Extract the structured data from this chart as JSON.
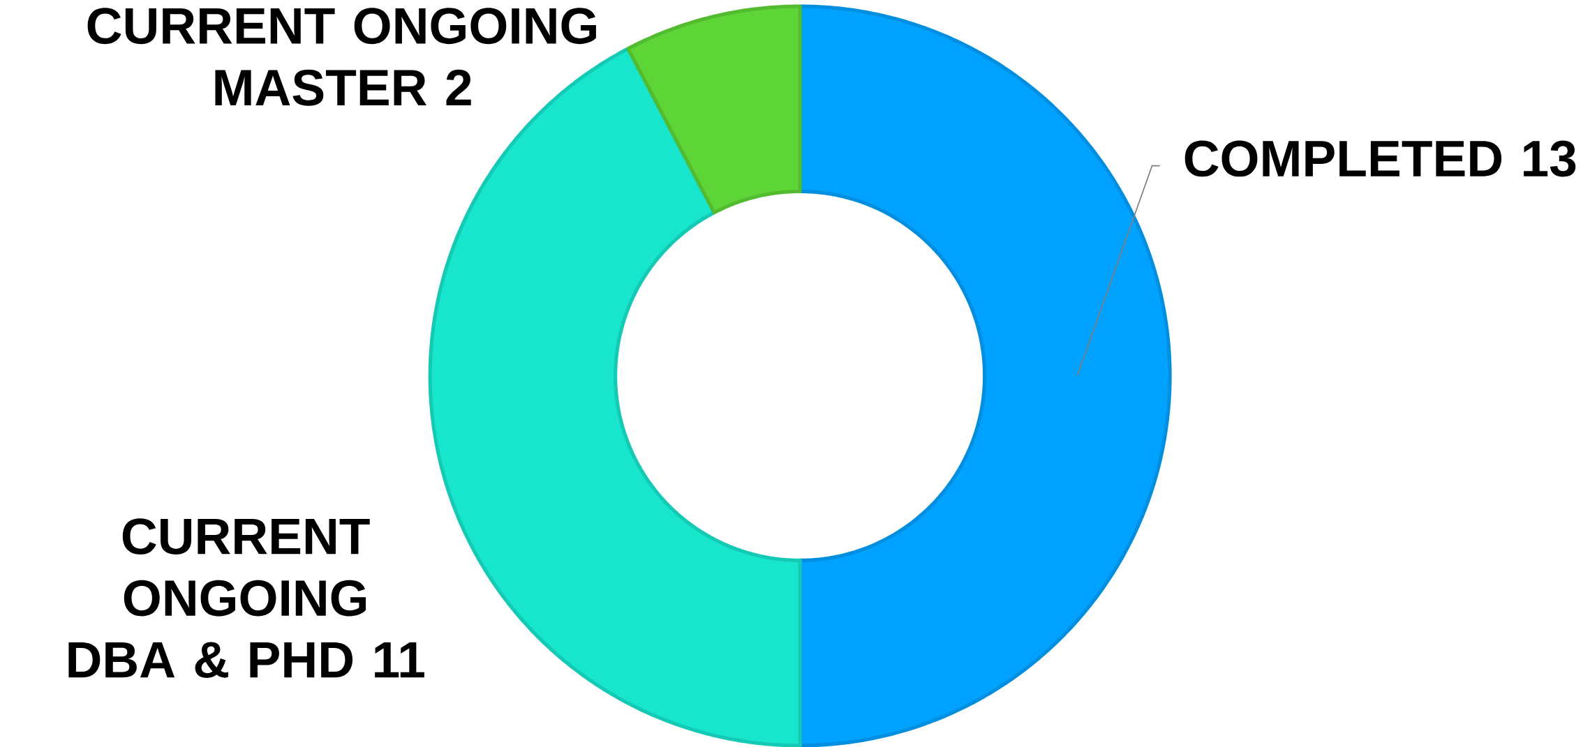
{
  "chart_data": {
    "type": "donut",
    "categories": [
      "COMPLETED",
      "CURRENT ONGOING DBA & PHD",
      "CURRENT ONGOING MASTER"
    ],
    "values": [
      13,
      11,
      2
    ],
    "colors": [
      "#00a2ff",
      "#17e6cc",
      "#5ed536"
    ],
    "data_labels": true
  }
}
